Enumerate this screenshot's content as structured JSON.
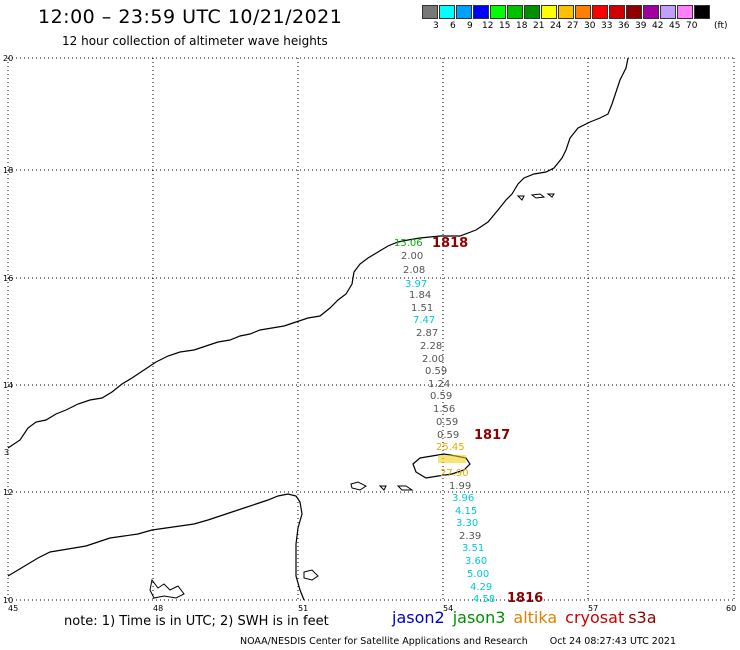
{
  "header": {
    "title": "12:00 – 23:59 UTC 10/21/2021",
    "subtitle": "12 hour collection of altimeter wave heights"
  },
  "legend": {
    "colors": [
      "#777777",
      "#00ffff",
      "#00a0ff",
      "#0000ff",
      "#00ff00",
      "#00c000",
      "#009000",
      "#ffff00",
      "#ffc000",
      "#ff8000",
      "#ff0000",
      "#d00000",
      "#900000",
      "#a000a0",
      "#c0a0ff",
      "#ff80ff",
      "#000000"
    ],
    "labels": [
      "3",
      "6",
      "9",
      "12",
      "15",
      "18",
      "21",
      "24",
      "27",
      "30",
      "33",
      "36",
      "39",
      "42",
      "45",
      "70"
    ],
    "unit": "(ft)"
  },
  "map": {
    "x_ticks": [
      "45",
      "48",
      "51",
      "54",
      "57",
      "60"
    ],
    "y_ticks": [
      "10",
      "12",
      "14",
      "16",
      "18",
      "20"
    ],
    "y_mid_tick": "3",
    "track_labels": [
      {
        "text": "1818",
        "color": "#8b0000"
      },
      {
        "text": "1817",
        "color": "#8b0000"
      },
      {
        "text": "1816",
        "color": "#8b0000"
      }
    ],
    "wave_heights": [
      {
        "text": "15.06",
        "color": "#00b000"
      },
      {
        "text": "2.00",
        "color": "#555555"
      },
      {
        "text": "2.08",
        "color": "#555555"
      },
      {
        "text": "3.97",
        "color": "#00c8d8"
      },
      {
        "text": "1.84",
        "color": "#555555"
      },
      {
        "text": "1.51",
        "color": "#555555"
      },
      {
        "text": "7.47",
        "color": "#00c8d8"
      },
      {
        "text": "2.87",
        "color": "#555555"
      },
      {
        "text": "2.28",
        "color": "#555555"
      },
      {
        "text": "2.00",
        "color": "#555555"
      },
      {
        "text": "0.59",
        "color": "#555555"
      },
      {
        "text": "1.24",
        "color": "#555555"
      },
      {
        "text": "0.59",
        "color": "#555555"
      },
      {
        "text": "1.56",
        "color": "#555555"
      },
      {
        "text": "0.59",
        "color": "#555555"
      },
      {
        "text": "0.59",
        "color": "#555555"
      },
      {
        "text": "25.45",
        "color": "#e0b000"
      },
      {
        "text": "27.90",
        "color": "#e0b000"
      },
      {
        "text": "1.99",
        "color": "#555555"
      },
      {
        "text": "3.96",
        "color": "#00c8d8"
      },
      {
        "text": "4.15",
        "color": "#00c8d8"
      },
      {
        "text": "3.30",
        "color": "#00c8d8"
      },
      {
        "text": "2.39",
        "color": "#555555"
      },
      {
        "text": "3.51",
        "color": "#00c8d8"
      },
      {
        "text": "3.60",
        "color": "#00c8d8"
      },
      {
        "text": "5.00",
        "color": "#00c8d8"
      },
      {
        "text": "4.29",
        "color": "#00c8d8"
      },
      {
        "text": "4.58",
        "color": "#00c8d8"
      }
    ]
  },
  "bottom": {
    "note": "note: 1) Time is in UTC; 2) SWH is in feet",
    "satellites": [
      {
        "name": "jason2",
        "color": "#0000cc"
      },
      {
        "name": "jason3",
        "color": "#009000"
      },
      {
        "name": "altika",
        "color": "#e08000"
      },
      {
        "name": "cryosat",
        "color": "#cc0000"
      },
      {
        "name": "s3a",
        "color": "#8b0000"
      }
    ],
    "credit": "NOAA/NESDIS Center for Satellite Applications and Research",
    "timestamp": "Oct 24 08:27:43 UTC 2021"
  }
}
